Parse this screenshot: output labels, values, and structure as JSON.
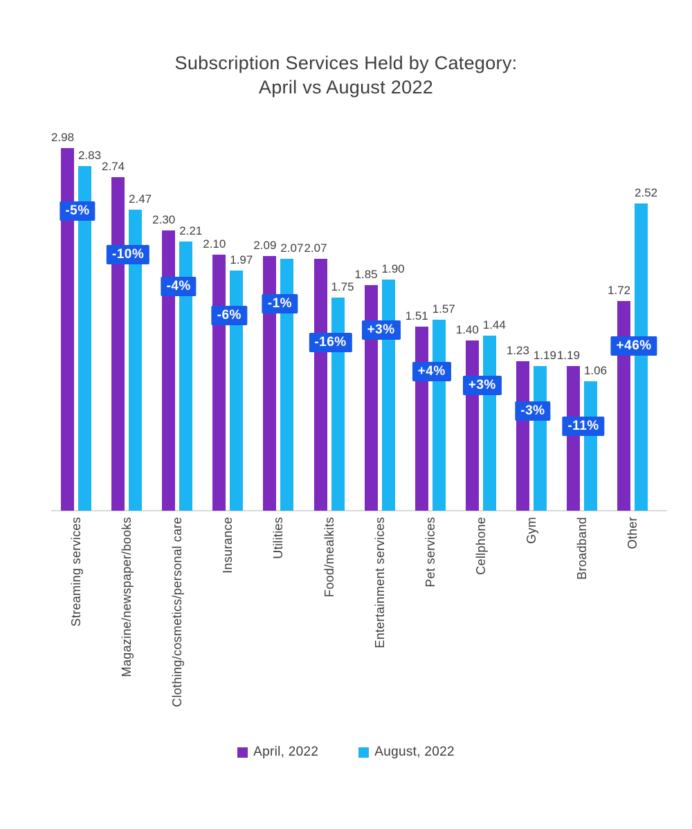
{
  "chart_data": {
    "type": "bar",
    "title": "Subscription Services Held by Category: April vs August 2022",
    "title_lines": [
      "Subscription Services Held by Category:",
      "April vs August 2022"
    ],
    "categories": [
      "Streaming services",
      "Magazine/newspaper/books",
      "Clothing/cosmetics/personal care",
      "Insurance",
      "Utilities",
      "Food/mealkits",
      "Entertainment services",
      "Pet services",
      "Cellphone",
      "Gym",
      "Broadband",
      "Other"
    ],
    "series": [
      {
        "name": "April, 2022",
        "color": "#7C2BBE",
        "values": [
          2.98,
          2.74,
          2.3,
          2.1,
          2.09,
          2.07,
          1.85,
          1.51,
          1.4,
          1.23,
          1.19,
          1.72
        ]
      },
      {
        "name": "August, 2022",
        "color": "#1CB4F2",
        "values": [
          2.83,
          2.47,
          2.21,
          1.97,
          2.07,
          1.75,
          1.9,
          1.57,
          1.44,
          1.19,
          1.06,
          2.52
        ]
      }
    ],
    "change_labels": [
      "-5%",
      "-10%",
      "-4%",
      "-6%",
      "-1%",
      "-16%",
      "+3%",
      "+4%",
      "+3%",
      "-3%",
      "-11%",
      "+46%"
    ],
    "badge_color": "#1959EA",
    "value_decimals": 2,
    "ylim": [
      0,
      3.2
    ],
    "grid": false,
    "legend_position": "bottom",
    "axis_color": "#D9D9D9",
    "text_color": "#3D3D3D",
    "xlabel": "",
    "ylabel": ""
  }
}
